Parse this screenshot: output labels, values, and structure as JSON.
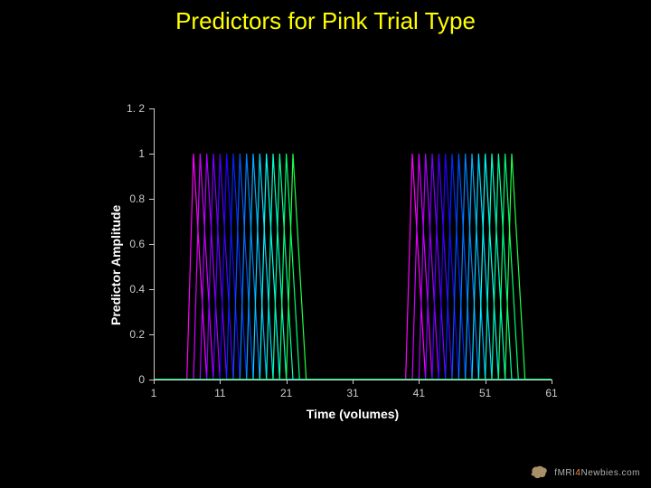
{
  "title": "Predictors for Pink Trial Type",
  "title_color": "#ffff00",
  "title_fontsize": 26,
  "background_color": "#000000",
  "chart": {
    "type": "line",
    "plot_background": "#000000",
    "axis_color": "#cccccc",
    "tick_label_color": "#cccccc",
    "tick_fontsize": 12,
    "label_color": "#ffffff",
    "label_fontsize": 14,
    "line_width": 1.2,
    "xlim": [
      1,
      61
    ],
    "ylim": [
      0,
      1.2
    ],
    "xticks": [
      1,
      11,
      21,
      31,
      41,
      51,
      61
    ],
    "yticks": [
      0,
      0.2,
      0.4,
      0.6,
      0.8,
      1,
      1.2
    ],
    "xlabel": "Time (volumes)",
    "ylabel": "Predictor Amplitude",
    "series_colors": [
      "#ff00ff",
      "#d400ff",
      "#a800ff",
      "#7c00ff",
      "#5000ff",
      "#2400ff",
      "#0028ff",
      "#0054ff",
      "#0080ff",
      "#00acff",
      "#00d8ff",
      "#00fff4",
      "#00ffc8",
      "#00ff9c",
      "#00ff70",
      "#20ff44"
    ],
    "series": [
      {
        "onsets": [
          7,
          40
        ],
        "rise": 1,
        "fall": 2
      },
      {
        "onsets": [
          8,
          41
        ],
        "rise": 1,
        "fall": 2
      },
      {
        "onsets": [
          9,
          42
        ],
        "rise": 1,
        "fall": 2
      },
      {
        "onsets": [
          10,
          43
        ],
        "rise": 1,
        "fall": 2
      },
      {
        "onsets": [
          11,
          44
        ],
        "rise": 1,
        "fall": 2
      },
      {
        "onsets": [
          12,
          45
        ],
        "rise": 1,
        "fall": 2
      },
      {
        "onsets": [
          13,
          46
        ],
        "rise": 1,
        "fall": 2
      },
      {
        "onsets": [
          14,
          47
        ],
        "rise": 1,
        "fall": 2
      },
      {
        "onsets": [
          15,
          48
        ],
        "rise": 1,
        "fall": 2
      },
      {
        "onsets": [
          16,
          49
        ],
        "rise": 1,
        "fall": 2
      },
      {
        "onsets": [
          17,
          50
        ],
        "rise": 1,
        "fall": 2
      },
      {
        "onsets": [
          18,
          51
        ],
        "rise": 1,
        "fall": 2
      },
      {
        "onsets": [
          19,
          52
        ],
        "rise": 1,
        "fall": 2
      },
      {
        "onsets": [
          20,
          53
        ],
        "rise": 1,
        "fall": 2
      },
      {
        "onsets": [
          21,
          54
        ],
        "rise": 1,
        "fall": 2
      },
      {
        "onsets": [
          22,
          55
        ],
        "rise": 1,
        "fall": 2
      }
    ]
  },
  "logo": {
    "text_prefix": "fMRI",
    "text_accent": "4",
    "text_suffix": "Newbies",
    "text_domain": ".com",
    "text_color": "#b0b0b0",
    "accent_color": "#ff8c3a",
    "brain_color": "#c9a87a"
  }
}
